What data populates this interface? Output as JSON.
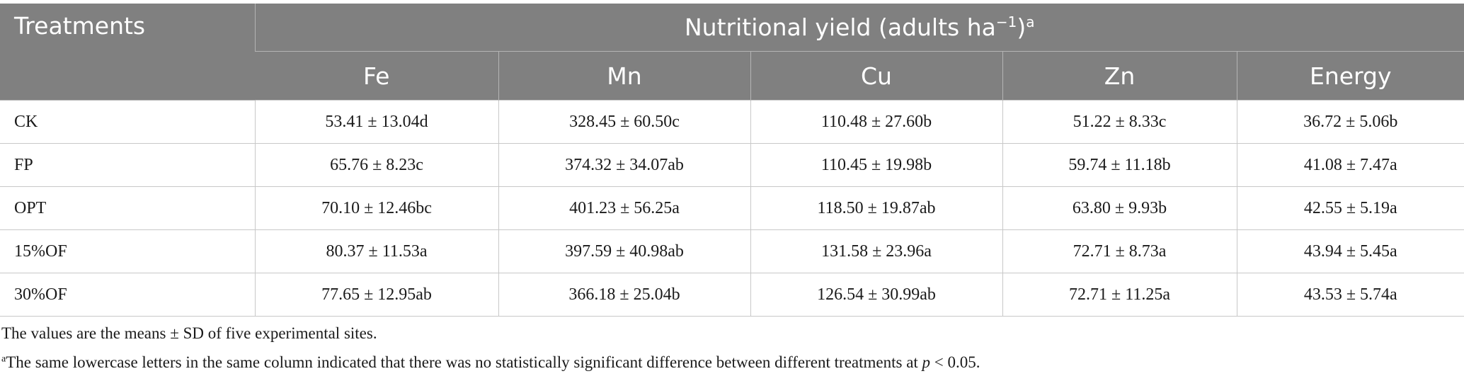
{
  "header": {
    "treatments": "Treatments",
    "group_title": "Nutritional yield (adults ha",
    "group_exp": "−1",
    "group_close": ")",
    "group_note_mark": "a",
    "columns": [
      "Fe",
      "Mn",
      "Cu",
      "Zn",
      "Energy"
    ]
  },
  "rows": [
    {
      "label": "CK",
      "cells": [
        "53.41 ± 13.04d",
        "328.45 ± 60.50c",
        "110.48 ± 27.60b",
        "51.22 ± 8.33c",
        "36.72 ± 5.06b"
      ]
    },
    {
      "label": "FP",
      "cells": [
        "65.76 ± 8.23c",
        "374.32 ± 34.07ab",
        "110.45 ± 19.98b",
        "59.74 ± 11.18b",
        "41.08 ± 7.47a"
      ]
    },
    {
      "label": "OPT",
      "cells": [
        "70.10 ± 12.46bc",
        "401.23 ± 56.25a",
        "118.50 ± 19.87ab",
        "63.80 ± 9.93b",
        "42.55 ± 5.19a"
      ]
    },
    {
      "label": "15%OF",
      "cells": [
        "80.37 ± 11.53a",
        "397.59 ± 40.98ab",
        "131.58 ± 23.96a",
        "72.71 ± 8.73a",
        "43.94 ± 5.45a"
      ]
    },
    {
      "label": "30%OF",
      "cells": [
        "77.65 ± 12.95ab",
        "366.18 ± 25.04b",
        "126.54 ± 30.99ab",
        "72.71 ± 11.25a",
        "43.53 ± 5.74a"
      ]
    }
  ],
  "notes": {
    "line1": "The values are the means ± SD of five experimental sites.",
    "line2_mark": "a",
    "line2_text": "The same lowercase letters in the same column indicated that there was no statistically significant difference between different treatments at ",
    "line2_p": "p",
    "line2_end": " < 0.05."
  }
}
